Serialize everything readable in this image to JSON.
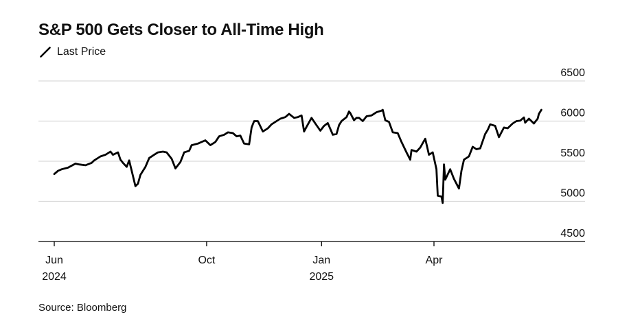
{
  "title": "S&P 500 Gets Closer to All-Time High",
  "legend": {
    "label": "Last Price",
    "icon": "line-swatch-icon"
  },
  "source": "Source: Bloomberg",
  "colors": {
    "line": "#000000",
    "grid": "#d9d9d9",
    "axis": "#000000",
    "text": "#111111",
    "background": "#ffffff"
  },
  "chart_data": {
    "type": "line",
    "title": "S&P 500 Gets Closer to All-Time High",
    "xlabel": "",
    "ylabel": "",
    "ylim": [
      4500,
      6500
    ],
    "y_ticks": [
      "6500",
      "6000",
      "5500",
      "5000",
      "4500"
    ],
    "x_ticks": [
      {
        "date": "2024-06-01",
        "label": "Jun",
        "sublabel": "2024"
      },
      {
        "date": "2024-10-01",
        "label": "Oct",
        "sublabel": ""
      },
      {
        "date": "2025-01-01",
        "label": "Jan",
        "sublabel": "2025"
      },
      {
        "date": "2025-04-01",
        "label": "Apr",
        "sublabel": ""
      }
    ],
    "grid": true,
    "legend_position": "top-left",
    "series": [
      {
        "name": "Last Price",
        "points": [
          [
            "2024-06-01",
            5340
          ],
          [
            "2024-06-04",
            5380
          ],
          [
            "2024-06-07",
            5400
          ],
          [
            "2024-06-12",
            5420
          ],
          [
            "2024-06-18",
            5470
          ],
          [
            "2024-06-21",
            5460
          ],
          [
            "2024-06-26",
            5450
          ],
          [
            "2024-07-01",
            5480
          ],
          [
            "2024-07-03",
            5510
          ],
          [
            "2024-07-08",
            5560
          ],
          [
            "2024-07-12",
            5580
          ],
          [
            "2024-07-16",
            5620
          ],
          [
            "2024-07-18",
            5580
          ],
          [
            "2024-07-22",
            5610
          ],
          [
            "2024-07-24",
            5520
          ],
          [
            "2024-07-26",
            5480
          ],
          [
            "2024-07-29",
            5430
          ],
          [
            "2024-07-31",
            5510
          ],
          [
            "2024-08-02",
            5380
          ],
          [
            "2024-08-05",
            5190
          ],
          [
            "2024-08-07",
            5220
          ],
          [
            "2024-08-09",
            5330
          ],
          [
            "2024-08-13",
            5430
          ],
          [
            "2024-08-16",
            5540
          ],
          [
            "2024-08-20",
            5580
          ],
          [
            "2024-08-23",
            5610
          ],
          [
            "2024-08-27",
            5620
          ],
          [
            "2024-08-30",
            5610
          ],
          [
            "2024-09-03",
            5530
          ],
          [
            "2024-09-06",
            5410
          ],
          [
            "2024-09-10",
            5490
          ],
          [
            "2024-09-13",
            5610
          ],
          [
            "2024-09-17",
            5630
          ],
          [
            "2024-09-19",
            5700
          ],
          [
            "2024-09-24",
            5720
          ],
          [
            "2024-09-27",
            5740
          ],
          [
            "2024-09-30",
            5760
          ],
          [
            "2024-10-04",
            5700
          ],
          [
            "2024-10-08",
            5740
          ],
          [
            "2024-10-11",
            5810
          ],
          [
            "2024-10-15",
            5830
          ],
          [
            "2024-10-18",
            5860
          ],
          [
            "2024-10-22",
            5850
          ],
          [
            "2024-10-25",
            5810
          ],
          [
            "2024-10-28",
            5820
          ],
          [
            "2024-10-31",
            5720
          ],
          [
            "2024-11-04",
            5710
          ],
          [
            "2024-11-06",
            5920
          ],
          [
            "2024-11-08",
            6000
          ],
          [
            "2024-11-11",
            6000
          ],
          [
            "2024-11-15",
            5870
          ],
          [
            "2024-11-19",
            5910
          ],
          [
            "2024-11-22",
            5960
          ],
          [
            "2024-11-26",
            6000
          ],
          [
            "2024-11-29",
            6030
          ],
          [
            "2024-12-03",
            6050
          ],
          [
            "2024-12-06",
            6090
          ],
          [
            "2024-12-10",
            6040
          ],
          [
            "2024-12-13",
            6050
          ],
          [
            "2024-12-16",
            6070
          ],
          [
            "2024-12-18",
            5870
          ],
          [
            "2024-12-20",
            5930
          ],
          [
            "2024-12-24",
            6040
          ],
          [
            "2024-12-27",
            5970
          ],
          [
            "2024-12-31",
            5880
          ],
          [
            "2025-01-03",
            5940
          ],
          [
            "2025-01-06",
            5975
          ],
          [
            "2025-01-10",
            5830
          ],
          [
            "2025-01-13",
            5840
          ],
          [
            "2025-01-15",
            5950
          ],
          [
            "2025-01-17",
            6000
          ],
          [
            "2025-01-21",
            6050
          ],
          [
            "2025-01-23",
            6120
          ],
          [
            "2025-01-24",
            6100
          ],
          [
            "2025-01-27",
            6010
          ],
          [
            "2025-01-29",
            6040
          ],
          [
            "2025-01-31",
            6040
          ],
          [
            "2025-02-03",
            6000
          ],
          [
            "2025-02-06",
            6060
          ],
          [
            "2025-02-10",
            6070
          ],
          [
            "2025-02-14",
            6110
          ],
          [
            "2025-02-18",
            6130
          ],
          [
            "2025-02-19",
            6140
          ],
          [
            "2025-02-21",
            6010
          ],
          [
            "2025-02-24",
            5990
          ],
          [
            "2025-02-27",
            5860
          ],
          [
            "2025-03-03",
            5850
          ],
          [
            "2025-03-06",
            5740
          ],
          [
            "2025-03-10",
            5610
          ],
          [
            "2025-03-13",
            5520
          ],
          [
            "2025-03-14",
            5640
          ],
          [
            "2025-03-18",
            5620
          ],
          [
            "2025-03-21",
            5670
          ],
          [
            "2025-03-25",
            5780
          ],
          [
            "2025-03-28",
            5580
          ],
          [
            "2025-03-31",
            5610
          ],
          [
            "2025-04-03",
            5400
          ],
          [
            "2025-04-04",
            5070
          ],
          [
            "2025-04-07",
            5060
          ],
          [
            "2025-04-08",
            4980
          ],
          [
            "2025-04-09",
            5460
          ],
          [
            "2025-04-10",
            5270
          ],
          [
            "2025-04-14",
            5400
          ],
          [
            "2025-04-17",
            5280
          ],
          [
            "2025-04-21",
            5160
          ],
          [
            "2025-04-23",
            5380
          ],
          [
            "2025-04-25",
            5520
          ],
          [
            "2025-04-29",
            5560
          ],
          [
            "2025-05-02",
            5680
          ],
          [
            "2025-05-05",
            5650
          ],
          [
            "2025-05-08",
            5660
          ],
          [
            "2025-05-12",
            5840
          ],
          [
            "2025-05-14",
            5890
          ],
          [
            "2025-05-16",
            5960
          ],
          [
            "2025-05-20",
            5940
          ],
          [
            "2025-05-23",
            5800
          ],
          [
            "2025-05-27",
            5920
          ],
          [
            "2025-05-30",
            5910
          ],
          [
            "2025-06-03",
            5970
          ],
          [
            "2025-06-06",
            6000
          ],
          [
            "2025-06-09",
            6005
          ],
          [
            "2025-06-12",
            6045
          ],
          [
            "2025-06-13",
            5980
          ],
          [
            "2025-06-16",
            6030
          ],
          [
            "2025-06-20",
            5970
          ],
          [
            "2025-06-23",
            6030
          ],
          [
            "2025-06-24",
            6090
          ],
          [
            "2025-06-26",
            6140
          ]
        ]
      }
    ]
  }
}
